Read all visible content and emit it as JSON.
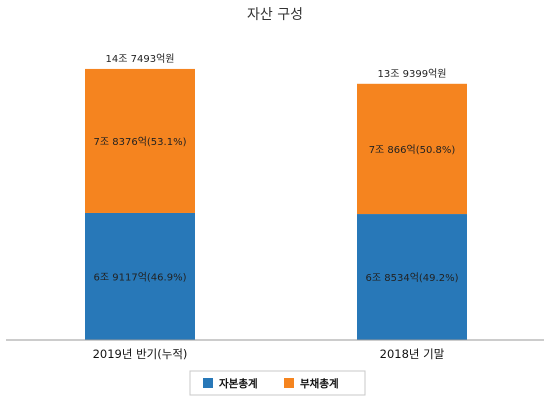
{
  "chart_data": {
    "type": "bar",
    "stacked": true,
    "title": "자산 구성",
    "categories": [
      "2019년 반기(누적)",
      "2018년 기말"
    ],
    "series": [
      {
        "name": "자본총계",
        "color": "#2878b8",
        "values": [
          6.9117,
          6.8534
        ],
        "labels": [
          "6조 9117억(46.9%)",
          "6조 8534억(49.2%)"
        ]
      },
      {
        "name": "부채총계",
        "color": "#f5841f",
        "values": [
          7.8376,
          7.0866
        ],
        "labels": [
          "7조 8376억(53.1%)",
          "7조 866억(50.8%)"
        ]
      }
    ],
    "totals": [
      14.7493,
      13.9399
    ],
    "total_labels": [
      "14조 7493억원",
      "13조 9399억원"
    ],
    "ylim": [
      0,
      18.5
    ],
    "grid": false,
    "legend_position": "bottom"
  }
}
